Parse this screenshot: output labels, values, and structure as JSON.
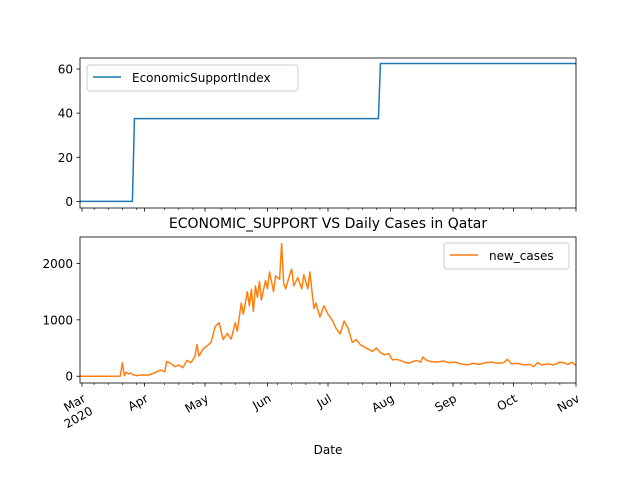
{
  "title": "ECONOMIC_SUPPORT VS Daily Cases in Qatar",
  "xlabel": "Date",
  "x_tick_labels": [
    {
      "date": "2020-03-01",
      "label": "Mar",
      "label2": "2020"
    },
    {
      "date": "2020-04-01",
      "label": "Apr"
    },
    {
      "date": "2020-05-01",
      "label": "May"
    },
    {
      "date": "2020-06-01",
      "label": "Jun"
    },
    {
      "date": "2020-07-01",
      "label": "Jul"
    },
    {
      "date": "2020-08-01",
      "label": "Aug"
    },
    {
      "date": "2020-09-01",
      "label": "Sep"
    },
    {
      "date": "2020-10-01",
      "label": "Oct"
    },
    {
      "date": "2020-11-01",
      "label": "Nov"
    }
  ],
  "colors": {
    "economic": "#1f77b4",
    "cases": "#ff7f0e"
  },
  "chart_data": [
    {
      "type": "line",
      "x_range": [
        "2020-02-29",
        "2020-11-01"
      ],
      "ylim": [
        -3,
        65
      ],
      "yticks": [
        0,
        20,
        40,
        60
      ],
      "legend_position": "upper left",
      "series": [
        {
          "name": "EconomicSupportIndex",
          "points": [
            [
              "2020-02-29",
              0
            ],
            [
              "2020-03-26",
              0
            ],
            [
              "2020-03-27",
              37.5
            ],
            [
              "2020-07-26",
              37.5
            ],
            [
              "2020-07-27",
              62.5
            ],
            [
              "2020-11-01",
              62.5
            ]
          ]
        }
      ]
    },
    {
      "type": "line",
      "x_range": [
        "2020-02-29",
        "2020-11-01"
      ],
      "ylim": [
        -120,
        2470
      ],
      "yticks": [
        0,
        1000,
        2000
      ],
      "legend_position": "upper right",
      "series": [
        {
          "name": "new_cases",
          "points": [
            [
              "2020-02-29",
              0
            ],
            [
              "2020-03-10",
              0
            ],
            [
              "2020-03-20",
              2
            ],
            [
              "2020-03-21",
              240
            ],
            [
              "2020-03-22",
              10
            ],
            [
              "2020-03-23",
              70
            ],
            [
              "2020-03-24",
              40
            ],
            [
              "2020-03-25",
              60
            ],
            [
              "2020-03-26",
              30
            ],
            [
              "2020-03-28",
              10
            ],
            [
              "2020-03-31",
              25
            ],
            [
              "2020-04-03",
              20
            ],
            [
              "2020-04-06",
              60
            ],
            [
              "2020-04-09",
              110
            ],
            [
              "2020-04-11",
              80
            ],
            [
              "2020-04-12",
              260
            ],
            [
              "2020-04-14",
              230
            ],
            [
              "2020-04-16",
              170
            ],
            [
              "2020-04-18",
              200
            ],
            [
              "2020-04-20",
              150
            ],
            [
              "2020-04-22",
              280
            ],
            [
              "2020-04-24",
              240
            ],
            [
              "2020-04-26",
              350
            ],
            [
              "2020-04-27",
              560
            ],
            [
              "2020-04-28",
              360
            ],
            [
              "2020-04-30",
              480
            ],
            [
              "2020-05-02",
              540
            ],
            [
              "2020-05-04",
              600
            ],
            [
              "2020-05-06",
              880
            ],
            [
              "2020-05-08",
              950
            ],
            [
              "2020-05-10",
              650
            ],
            [
              "2020-05-12",
              760
            ],
            [
              "2020-05-14",
              660
            ],
            [
              "2020-05-16",
              950
            ],
            [
              "2020-05-17",
              800
            ],
            [
              "2020-05-19",
              1300
            ],
            [
              "2020-05-20",
              1100
            ],
            [
              "2020-05-22",
              1500
            ],
            [
              "2020-05-23",
              1250
            ],
            [
              "2020-05-24",
              1540
            ],
            [
              "2020-05-25",
              1150
            ],
            [
              "2020-05-26",
              1600
            ],
            [
              "2020-05-27",
              1400
            ],
            [
              "2020-05-28",
              1680
            ],
            [
              "2020-05-29",
              1350
            ],
            [
              "2020-05-31",
              1700
            ],
            [
              "2020-06-01",
              1550
            ],
            [
              "2020-06-02",
              1850
            ],
            [
              "2020-06-04",
              1500
            ],
            [
              "2020-06-05",
              1780
            ],
            [
              "2020-06-07",
              1720
            ],
            [
              "2020-06-08",
              2350
            ],
            [
              "2020-06-09",
              1650
            ],
            [
              "2020-06-10",
              1550
            ],
            [
              "2020-06-12",
              1800
            ],
            [
              "2020-06-13",
              1900
            ],
            [
              "2020-06-14",
              1600
            ],
            [
              "2020-06-16",
              1750
            ],
            [
              "2020-06-18",
              1550
            ],
            [
              "2020-06-19",
              1800
            ],
            [
              "2020-06-21",
              1550
            ],
            [
              "2020-06-22",
              1850
            ],
            [
              "2020-06-24",
              1200
            ],
            [
              "2020-06-25",
              1300
            ],
            [
              "2020-06-27",
              1050
            ],
            [
              "2020-06-29",
              1250
            ],
            [
              "2020-07-01",
              1100
            ],
            [
              "2020-07-03",
              1000
            ],
            [
              "2020-07-05",
              850
            ],
            [
              "2020-07-07",
              750
            ],
            [
              "2020-07-09",
              980
            ],
            [
              "2020-07-11",
              850
            ],
            [
              "2020-07-13",
              600
            ],
            [
              "2020-07-15",
              650
            ],
            [
              "2020-07-17",
              560
            ],
            [
              "2020-07-19",
              520
            ],
            [
              "2020-07-21",
              480
            ],
            [
              "2020-07-23",
              440
            ],
            [
              "2020-07-25",
              500
            ],
            [
              "2020-07-27",
              420
            ],
            [
              "2020-07-29",
              380
            ],
            [
              "2020-07-31",
              400
            ],
            [
              "2020-08-02",
              290
            ],
            [
              "2020-08-04",
              300
            ],
            [
              "2020-08-06",
              280
            ],
            [
              "2020-08-08",
              250
            ],
            [
              "2020-08-10",
              230
            ],
            [
              "2020-08-12",
              260
            ],
            [
              "2020-08-14",
              280
            ],
            [
              "2020-08-16",
              250
            ],
            [
              "2020-08-17",
              340
            ],
            [
              "2020-08-19",
              280
            ],
            [
              "2020-08-21",
              260
            ],
            [
              "2020-08-24",
              250
            ],
            [
              "2020-08-27",
              270
            ],
            [
              "2020-08-30",
              240
            ],
            [
              "2020-09-02",
              250
            ],
            [
              "2020-09-05",
              220
            ],
            [
              "2020-09-08",
              200
            ],
            [
              "2020-09-11",
              230
            ],
            [
              "2020-09-14",
              210
            ],
            [
              "2020-09-17",
              240
            ],
            [
              "2020-09-20",
              250
            ],
            [
              "2020-09-23",
              230
            ],
            [
              "2020-09-26",
              240
            ],
            [
              "2020-09-28",
              300
            ],
            [
              "2020-09-30",
              220
            ],
            [
              "2020-10-03",
              230
            ],
            [
              "2020-10-06",
              200
            ],
            [
              "2020-10-09",
              210
            ],
            [
              "2020-10-11",
              170
            ],
            [
              "2020-10-13",
              240
            ],
            [
              "2020-10-15",
              200
            ],
            [
              "2020-10-18",
              220
            ],
            [
              "2020-10-21",
              200
            ],
            [
              "2020-10-24",
              250
            ],
            [
              "2020-10-26",
              240
            ],
            [
              "2020-10-28",
              210
            ],
            [
              "2020-10-30",
              250
            ],
            [
              "2020-11-01",
              190
            ]
          ]
        }
      ]
    }
  ]
}
